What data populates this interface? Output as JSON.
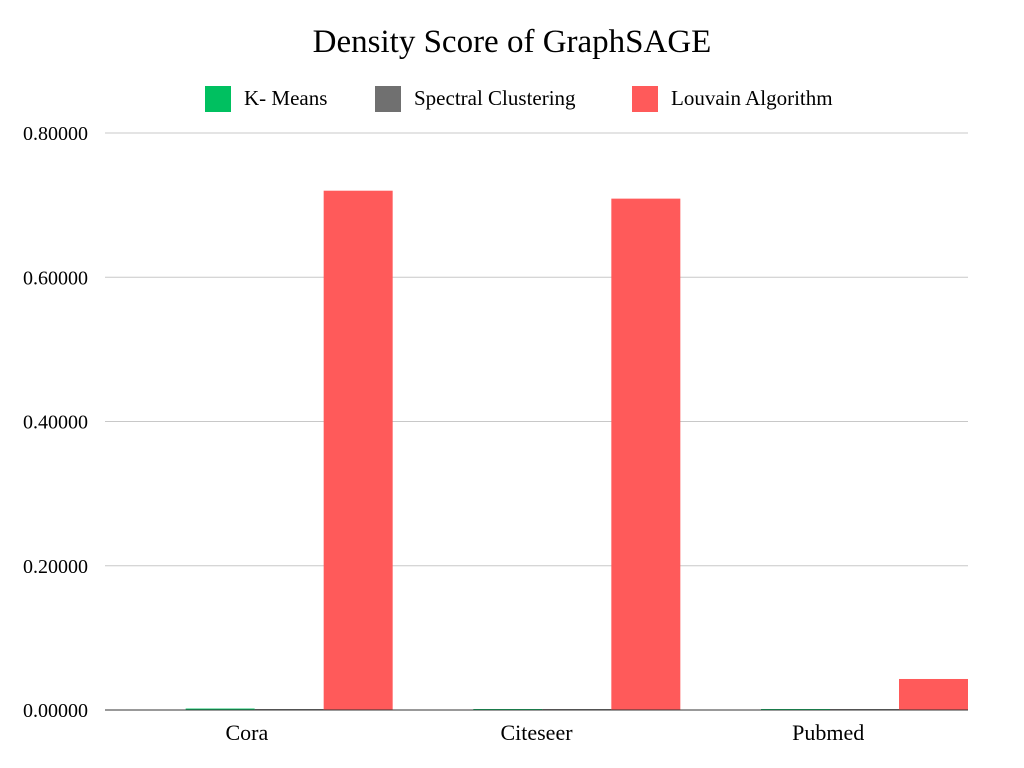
{
  "chart_data": {
    "type": "bar",
    "title": "Density Score of GraphSAGE",
    "xlabel": "",
    "ylabel": "",
    "categories": [
      "Cora",
      "Citeseer",
      "Pubmed"
    ],
    "series": [
      {
        "name": "K- Means",
        "color": "#00c060",
        "values": [
          0.002,
          0.001,
          0.0005
        ]
      },
      {
        "name": "Spectral Clustering",
        "color": "#707070",
        "values": [
          0.001,
          0.0005,
          0.0005
        ]
      },
      {
        "name": "Louvain Algorithm",
        "color": "#ff5a5a",
        "values": [
          0.72,
          0.709,
          0.043
        ]
      }
    ],
    "ylim": [
      0,
      0.8
    ],
    "yticks": [
      "0.00000",
      "0.20000",
      "0.40000",
      "0.60000",
      "0.80000"
    ],
    "grid": true,
    "legend_position": "top"
  }
}
